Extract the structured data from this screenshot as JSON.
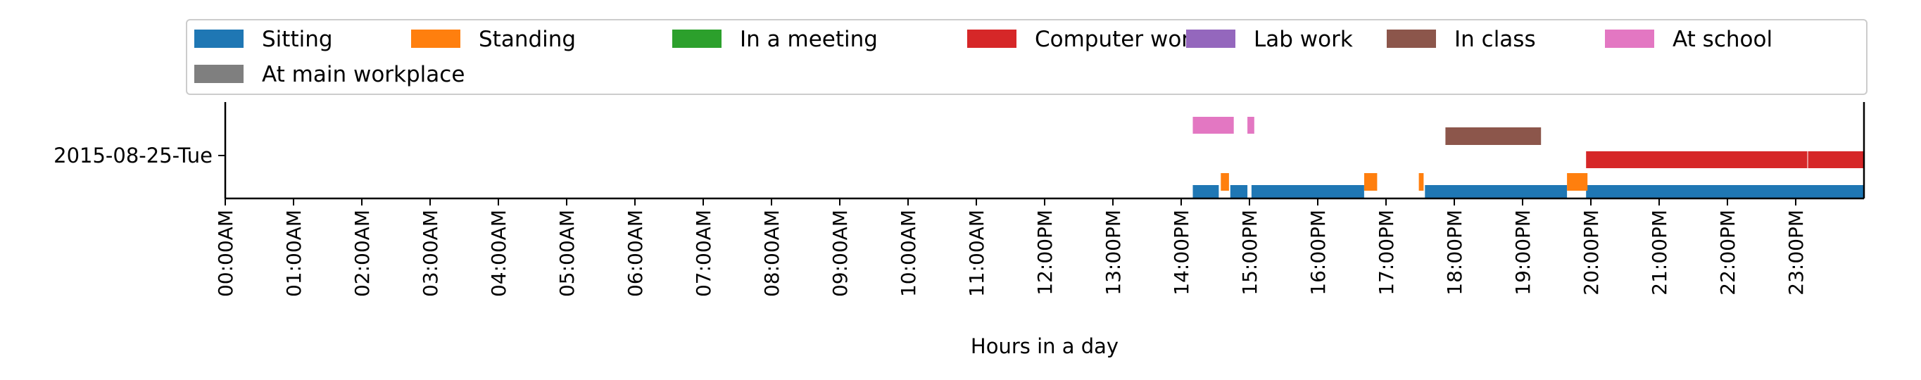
{
  "chart_data": {
    "type": "timeline",
    "category_label": "2015-08-25-Tue",
    "xlabel": "Hours in a day",
    "xlim": [
      0,
      24
    ],
    "x_tick_labels": [
      "00:00AM",
      "01:00AM",
      "02:00AM",
      "03:00AM",
      "04:00AM",
      "05:00AM",
      "06:00AM",
      "07:00AM",
      "08:00AM",
      "09:00AM",
      "10:00AM",
      "11:00AM",
      "12:00PM",
      "13:00PM",
      "14:00PM",
      "15:00PM",
      "16:00PM",
      "17:00PM",
      "18:00PM",
      "19:00PM",
      "20:00PM",
      "21:00PM",
      "22:00PM",
      "23:00PM"
    ],
    "legend_position": "top",
    "grid": false,
    "series": [
      {
        "name": "Sitting",
        "color": "#1f77b4",
        "intervals": [
          [
            14.17,
            14.55
          ],
          [
            14.72,
            14.97
          ],
          [
            15.03,
            16.68
          ],
          [
            17.57,
            19.65
          ],
          [
            19.93,
            24.0
          ]
        ]
      },
      {
        "name": "Standing",
        "color": "#ff7f0e",
        "intervals": [
          [
            14.58,
            14.7
          ],
          [
            16.68,
            16.87
          ],
          [
            17.48,
            17.55
          ],
          [
            19.65,
            19.95
          ]
        ]
      },
      {
        "name": "In a meeting",
        "color": "#2ca02c",
        "intervals": []
      },
      {
        "name": "Computer work",
        "color": "#d62728",
        "intervals": [
          [
            19.93,
            23.17
          ],
          [
            23.18,
            24.0
          ]
        ]
      },
      {
        "name": "Lab work",
        "color": "#9467bd",
        "intervals": []
      },
      {
        "name": "In class",
        "color": "#8c564b",
        "intervals": [
          [
            17.87,
            19.27
          ]
        ]
      },
      {
        "name": "At school",
        "color": "#e377c2",
        "intervals": [
          [
            14.17,
            14.77
          ],
          [
            14.97,
            15.07
          ]
        ]
      },
      {
        "name": "At main workplace",
        "color": "#7f7f7f",
        "intervals": []
      }
    ]
  }
}
